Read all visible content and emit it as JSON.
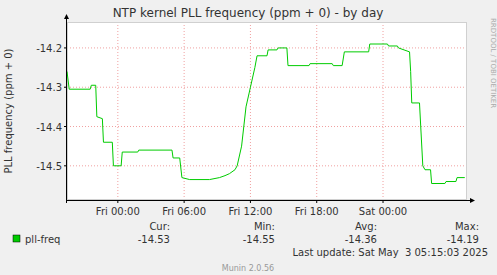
{
  "chart_data": {
    "type": "line",
    "title": "NTP kernel PLL frequency (ppm + 0) - by day",
    "y_label": "PLL frequency (ppm + 0)",
    "x": [
      -4.6,
      -4.4,
      -2.5,
      -2.4,
      -2.0,
      -1.9,
      -1.4,
      -1.3,
      -0.5,
      -0.4,
      0.3,
      0.4,
      1.8,
      1.9,
      4.9,
      5.0,
      5.6,
      5.8,
      6.5,
      8.3,
      9.2,
      9.7,
      10.1,
      10.6,
      10.8,
      11.2,
      11.6,
      12.0,
      12.4,
      12.6,
      13.5,
      13.6,
      14.4,
      14.5,
      15.3,
      15.4,
      17.3,
      17.4,
      19.4,
      19.5,
      20.3,
      20.5,
      22.7,
      22.8,
      24.4,
      24.5,
      25.3,
      25.4,
      26.4,
      26.5,
      26.6,
      27.3,
      27.6,
      27.8,
      28.3,
      28.4,
      29.6,
      29.7,
      30.6,
      30.7,
      31.4
    ],
    "series": [
      {
        "name": "pll-freq",
        "color": "#00cc00",
        "values": [
          -14.26,
          -14.305,
          -14.305,
          -14.295,
          -14.295,
          -14.375,
          -14.38,
          -14.44,
          -14.44,
          -14.5,
          -14.5,
          -14.465,
          -14.465,
          -14.46,
          -14.46,
          -14.48,
          -14.48,
          -14.53,
          -14.535,
          -14.535,
          -14.53,
          -14.525,
          -14.52,
          -14.51,
          -14.5,
          -14.45,
          -14.35,
          -14.3,
          -14.25,
          -14.22,
          -14.22,
          -14.205,
          -14.205,
          -14.2,
          -14.2,
          -14.245,
          -14.245,
          -14.24,
          -14.24,
          -14.245,
          -14.245,
          -14.21,
          -14.21,
          -14.19,
          -14.19,
          -14.195,
          -14.195,
          -14.2,
          -14.21,
          -14.26,
          -14.34,
          -14.34,
          -14.5,
          -14.51,
          -14.51,
          -14.545,
          -14.545,
          -14.54,
          -14.54,
          -14.53,
          -14.53
        ]
      }
    ],
    "xlim": [
      -4.6,
      31.6
    ],
    "xticks": [
      {
        "value": 0,
        "label": "Fri 00:00"
      },
      {
        "value": 6,
        "label": "Fri 06:00"
      },
      {
        "value": 12,
        "label": "Fri 12:00"
      },
      {
        "value": 18,
        "label": "Fri 18:00"
      },
      {
        "value": 24,
        "label": "Sat 00:00"
      }
    ],
    "ylim": [
      -14.587,
      -14.134
    ],
    "yticks": [
      -14.2,
      -14.3,
      -14.4,
      -14.5
    ],
    "grid": true,
    "legend": "bottom left",
    "legend_stats": {
      "headers": [
        "Cur:",
        "Min:",
        "Avg:",
        "Max:"
      ],
      "values": [
        "-14.53",
        "-14.55",
        "-14.36",
        "-14.19"
      ]
    },
    "footer": "Last update: Sat May  3 05:15:03 2025",
    "credit": "Munin 2.0.56",
    "watermark": "RRDTOOL / TOBI OETIKER"
  }
}
